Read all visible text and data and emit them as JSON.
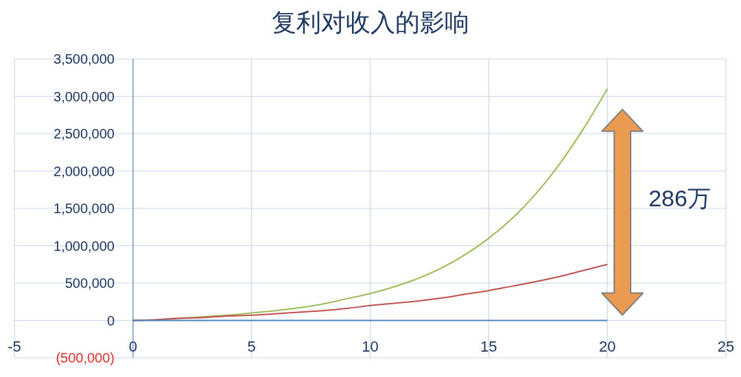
{
  "chart_data": {
    "type": "line",
    "title": "复利对收入的影响",
    "x": [
      0,
      1,
      2,
      3,
      4,
      5,
      6,
      7,
      8,
      9,
      10,
      11,
      12,
      13,
      14,
      15,
      16,
      17,
      18,
      19,
      20
    ],
    "series": [
      {
        "color": "#9bbb59",
        "values": [
          0,
          10000,
          30000,
          50000,
          70000,
          100000,
          130000,
          170000,
          220000,
          290000,
          360000,
          450000,
          560000,
          700000,
          880000,
          1100000,
          1370000,
          1700000,
          2100000,
          2570000,
          3100000
        ]
      },
      {
        "color": "#c0504d",
        "values": [
          0,
          10000,
          30000,
          40000,
          60000,
          70000,
          90000,
          110000,
          130000,
          160000,
          200000,
          230000,
          260000,
          300000,
          350000,
          400000,
          460000,
          520000,
          590000,
          670000,
          750000
        ]
      },
      {
        "color": "#4f81bd",
        "values": [
          0,
          0,
          0,
          0,
          0,
          0,
          0,
          0,
          0,
          0,
          0,
          0,
          0,
          0,
          0,
          0,
          0,
          0,
          0,
          0,
          0
        ]
      }
    ],
    "xlim": [
      -5,
      25
    ],
    "xticks": [
      -5,
      0,
      5,
      10,
      15,
      20,
      25
    ],
    "ylim": [
      -500000,
      3500000
    ],
    "yticks": [
      {
        "value": -500000,
        "label": "(500,000)"
      },
      {
        "value": 0,
        "label": "0"
      },
      {
        "value": 500000,
        "label": "500,000"
      },
      {
        "value": 1000000,
        "label": "1,000,000"
      },
      {
        "value": 1500000,
        "label": "1,500,000"
      },
      {
        "value": 2000000,
        "label": "2,000,000"
      },
      {
        "value": 2500000,
        "label": "2,500,000"
      },
      {
        "value": 3000000,
        "label": "3,000,000"
      },
      {
        "value": 3500000,
        "label": "3,500,000"
      }
    ],
    "grid": true,
    "marker": "none",
    "line_style": "solid",
    "annotations": [
      "286万"
    ]
  }
}
